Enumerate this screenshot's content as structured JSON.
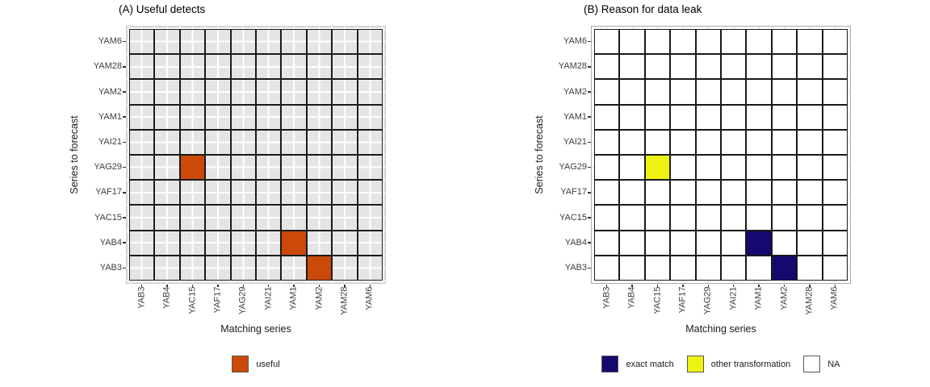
{
  "page": {
    "background": "#ffffff"
  },
  "chart_data": [
    {
      "type": "heatmap",
      "title": "(A) Useful detects",
      "xlabel": "Matching series",
      "ylabel": "Series to forecast",
      "x_categories": [
        "YAB3",
        "YAB4",
        "YAC15",
        "YAF17",
        "YAG29",
        "YAI21",
        "YAM1",
        "YAM2",
        "YAM28",
        "YAM6"
      ],
      "y_categories_top_to_bottom": [
        "YAM6",
        "YAM28",
        "YAM2",
        "YAM1",
        "YAI21",
        "YAG29",
        "YAF17",
        "YAC15",
        "YAB4",
        "YAB3"
      ],
      "cells": [
        {
          "x": "YAC15",
          "y": "YAG29",
          "value": "useful"
        },
        {
          "x": "YAM1",
          "y": "YAB4",
          "value": "useful"
        },
        {
          "x": "YAM2",
          "y": "YAB3",
          "value": "useful"
        }
      ],
      "legend": [
        {
          "label": "useful",
          "color": "#cb4a0a"
        }
      ],
      "panel_style": {
        "background": "#e5e5e5",
        "grid_color": "#ffffff",
        "grid_spacing": "half-cell",
        "cell_border": "#1a1a1a",
        "na_fill": "transparent",
        "panel_outline": "#c9c9c9"
      }
    },
    {
      "type": "heatmap",
      "title": "(B) Reason for data leak",
      "xlabel": "Matching series",
      "ylabel": "Series to forecast",
      "x_categories": [
        "YAB3",
        "YAB4",
        "YAC15",
        "YAF17",
        "YAG29",
        "YAI21",
        "YAM1",
        "YAM2",
        "YAM28",
        "YAM6"
      ],
      "y_categories_top_to_bottom": [
        "YAM6",
        "YAM28",
        "YAM2",
        "YAM1",
        "YAI21",
        "YAG29",
        "YAF17",
        "YAC15",
        "YAB4",
        "YAB3"
      ],
      "cells": [
        {
          "x": "YAC15",
          "y": "YAG29",
          "value": "other transformation"
        },
        {
          "x": "YAM1",
          "y": "YAB4",
          "value": "exact match"
        },
        {
          "x": "YAM2",
          "y": "YAB3",
          "value": "exact match"
        }
      ],
      "legend": [
        {
          "label": "exact match",
          "color": "#14096e"
        },
        {
          "label": "other transformation",
          "color": "#eef212"
        },
        {
          "label": "NA",
          "color": "#ffffff"
        }
      ],
      "panel_style": {
        "background": "#ffffff",
        "grid_color": "#ebebeb",
        "grid_spacing": "cell",
        "cell_border": "#1a1a1a",
        "na_fill": "#ffffff",
        "panel_outline": "#ababab"
      }
    }
  ]
}
